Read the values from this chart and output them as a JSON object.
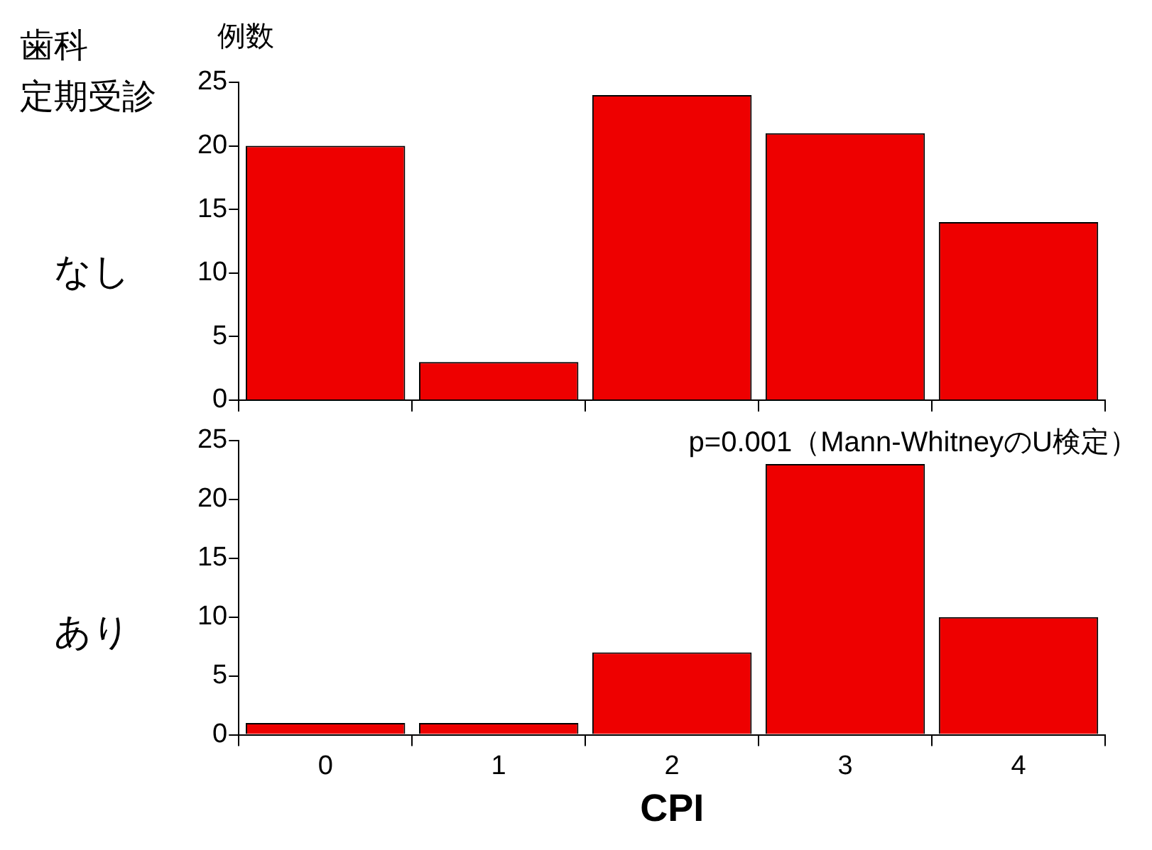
{
  "chart_data": [
    {
      "type": "bar",
      "title": "なし",
      "annotations": [
        "歯科",
        "定期受診"
      ],
      "ylabel": "例数",
      "categories": [
        "0",
        "1",
        "2",
        "3",
        "4"
      ],
      "values": [
        20,
        3,
        24,
        21,
        14
      ],
      "color": "#ee0000",
      "ylim": [
        0,
        25
      ],
      "yticks": [
        0,
        5,
        10,
        15,
        20,
        25
      ],
      "grid": false,
      "legend": false,
      "tick_labels": "y"
    },
    {
      "type": "bar",
      "title": "あり",
      "annotations": [
        "p=0.001（Mann-WhitneyのU検定）"
      ],
      "xlabel": "CPI",
      "categories": [
        "0",
        "1",
        "2",
        "3",
        "4"
      ],
      "values": [
        1,
        1,
        7,
        23,
        10
      ],
      "color": "#ee0000",
      "ylim": [
        0,
        25
      ],
      "yticks": [
        0,
        5,
        10,
        15,
        20,
        25
      ],
      "grid": false,
      "legend": false
    }
  ]
}
